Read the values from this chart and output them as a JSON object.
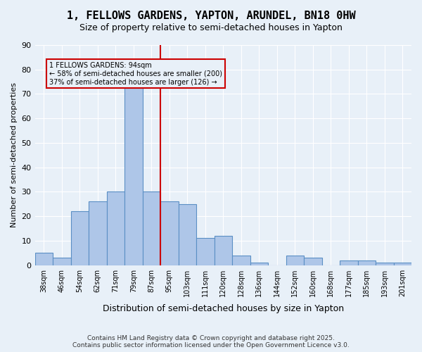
{
  "title_line1": "1, FELLOWS GARDENS, YAPTON, ARUNDEL, BN18 0HW",
  "title_line2": "Size of property relative to semi-detached houses in Yapton",
  "xlabel": "Distribution of semi-detached houses by size in Yapton",
  "ylabel": "Number of semi-detached properties",
  "bar_labels": [
    "38sqm",
    "46sqm",
    "54sqm",
    "62sqm",
    "71sqm",
    "79sqm",
    "87sqm",
    "95sqm",
    "103sqm",
    "111sqm",
    "120sqm",
    "128sqm",
    "136sqm",
    "144sqm",
    "152sqm",
    "160sqm",
    "168sqm",
    "177sqm",
    "185sqm",
    "193sqm",
    "201sqm"
  ],
  "bar_values": [
    5,
    3,
    22,
    26,
    30,
    73,
    30,
    26,
    25,
    11,
    12,
    4,
    1,
    0,
    4,
    3,
    0,
    2,
    2,
    1,
    1
  ],
  "bar_color": "#aec6e8",
  "bar_edge_color": "#5a8fc4",
  "property_value_idx": 6.5,
  "property_label": "1 FELLOWS GARDENS: 94sqm",
  "smaller_pct": 58,
  "smaller_count": 200,
  "larger_pct": 37,
  "larger_count": 126,
  "vline_color": "#cc0000",
  "annotation_box_color": "#cc0000",
  "bg_color": "#e8f0f8",
  "grid_color": "#ffffff",
  "footer_text": "Contains HM Land Registry data © Crown copyright and database right 2025.\nContains public sector information licensed under the Open Government Licence v3.0.",
  "ylim": [
    0,
    90
  ],
  "yticks": [
    0,
    10,
    20,
    30,
    40,
    50,
    60,
    70,
    80,
    90
  ]
}
